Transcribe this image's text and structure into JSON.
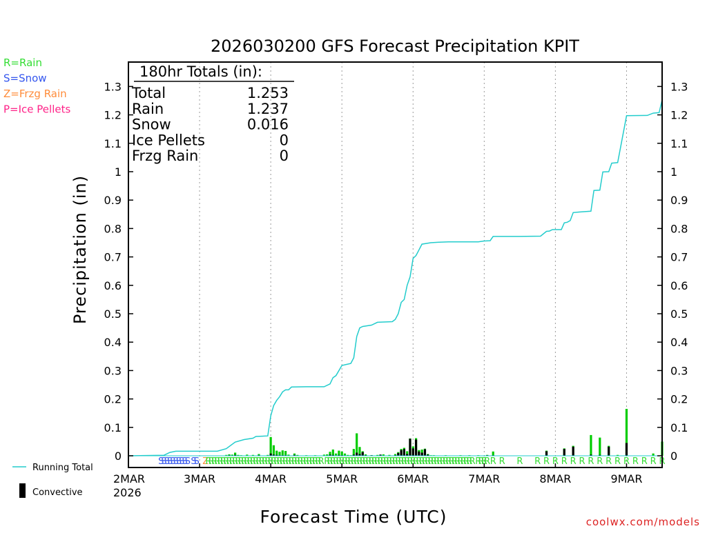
{
  "chart_data": {
    "type": "bar+line",
    "title": "2026030200 GFS Forecast Precipitation KPIT",
    "xlabel": "Forecast Time (UTC)",
    "ylabel": "Precipitation (in)",
    "credit": "coolwx.com/models",
    "forecast_hours": 180,
    "ylim": [
      0,
      1.35
    ],
    "yticks": [
      0,
      0.1,
      0.2,
      0.3,
      0.4,
      0.5,
      0.6,
      0.7,
      0.8,
      0.9,
      1,
      1.1,
      1.2,
      1.3
    ],
    "ytick_labels": [
      "0",
      "0.1",
      "0.2",
      "0.3",
      "0.4",
      "0.5",
      "0.6",
      "0.7",
      "0.8",
      "0.9",
      "1",
      "1.1",
      "1.2",
      "1.3"
    ],
    "xticks": [
      {
        "hour": 0,
        "label": "2MAR",
        "sublabel": "2026"
      },
      {
        "hour": 24,
        "label": "3MAR"
      },
      {
        "hour": 48,
        "label": "4MAR"
      },
      {
        "hour": 72,
        "label": "5MAR"
      },
      {
        "hour": 96,
        "label": "6MAR"
      },
      {
        "hour": 120,
        "label": "7MAR"
      },
      {
        "hour": 144,
        "label": "8MAR"
      },
      {
        "hour": 168,
        "label": "9MAR"
      }
    ],
    "ptype_legend": [
      {
        "label": "R=Rain",
        "color": "#33dd33"
      },
      {
        "label": "S=Snow",
        "color": "#3355ee"
      },
      {
        "label": "Z=Frzg Rain",
        "color": "#ff8c3a"
      },
      {
        "label": "P=Ice Pellets",
        "color": "#ff2288"
      }
    ],
    "series_legend": {
      "running_total": "Running Total",
      "convective": "Convective"
    },
    "totals": {
      "header": "180hr Totals (in):",
      "rows": [
        {
          "label": "Total",
          "value": "1.253"
        },
        {
          "label": "Rain",
          "value": "1.237"
        },
        {
          "label": "Snow",
          "value": "0.016"
        },
        {
          "label": "Ice Pellets",
          "value": "0"
        },
        {
          "label": "Frzg Rain",
          "value": "0"
        }
      ]
    },
    "colors": {
      "rain_bar": "#00cc00",
      "convective_bar": "#000000",
      "running_total": "#22cccc",
      "gridline": "#999999"
    },
    "bars": [
      {
        "hour": 12,
        "total": 0.001,
        "conv": 0
      },
      {
        "hour": 19,
        "total": 0.001,
        "conv": 0
      },
      {
        "hour": 33,
        "total": 0.003,
        "conv": 0.001
      },
      {
        "hour": 34,
        "total": 0.005,
        "conv": 0.002
      },
      {
        "hour": 35,
        "total": 0.004,
        "conv": 0
      },
      {
        "hour": 36,
        "total": 0.011,
        "conv": 0.003
      },
      {
        "hour": 37,
        "total": 0.003,
        "conv": 0
      },
      {
        "hour": 38,
        "total": 0.002,
        "conv": 0
      },
      {
        "hour": 39,
        "total": 0.001,
        "conv": 0
      },
      {
        "hour": 40,
        "total": 0.004,
        "conv": 0.001
      },
      {
        "hour": 42,
        "total": 0.003,
        "conv": 0
      },
      {
        "hour": 44,
        "total": 0.006,
        "conv": 0.002
      },
      {
        "hour": 47,
        "total": 0.003,
        "conv": 0
      },
      {
        "hour": 48,
        "total": 0.066,
        "conv": 0.008
      },
      {
        "hour": 49,
        "total": 0.037,
        "conv": 0.004
      },
      {
        "hour": 50,
        "total": 0.018,
        "conv": 0.003
      },
      {
        "hour": 51,
        "total": 0.014,
        "conv": 0.002
      },
      {
        "hour": 52,
        "total": 0.019,
        "conv": 0.002
      },
      {
        "hour": 53,
        "total": 0.017,
        "conv": 0.002
      },
      {
        "hour": 54,
        "total": 0.004,
        "conv": 0
      },
      {
        "hour": 56,
        "total": 0.008,
        "conv": 0.003
      },
      {
        "hour": 57,
        "total": 0.003,
        "conv": 0
      },
      {
        "hour": 60,
        "total": 0.002,
        "conv": 0
      },
      {
        "hour": 63,
        "total": 0.002,
        "conv": 0
      },
      {
        "hour": 66,
        "total": 0.004,
        "conv": 0
      },
      {
        "hour": 67,
        "total": 0.005,
        "conv": 0
      },
      {
        "hour": 68,
        "total": 0.014,
        "conv": 0.004
      },
      {
        "hour": 69,
        "total": 0.022,
        "conv": 0.003
      },
      {
        "hour": 70,
        "total": 0.008,
        "conv": 0.001
      },
      {
        "hour": 71,
        "total": 0.018,
        "conv": 0.003
      },
      {
        "hour": 72,
        "total": 0.015,
        "conv": 0.002
      },
      {
        "hour": 73,
        "total": 0.008,
        "conv": 0.001
      },
      {
        "hour": 74,
        "total": 0.003,
        "conv": 0
      },
      {
        "hour": 75,
        "total": 0.002,
        "conv": 0
      },
      {
        "hour": 76,
        "total": 0.024,
        "conv": 0.004
      },
      {
        "hour": 77,
        "total": 0.079,
        "conv": 0.011
      },
      {
        "hour": 78,
        "total": 0.031,
        "conv": 0.006
      },
      {
        "hour": 79,
        "total": 0.016,
        "conv": 0.013
      },
      {
        "hour": 80,
        "total": 0.005,
        "conv": 0.002
      },
      {
        "hour": 82,
        "total": 0.002,
        "conv": 0.002
      },
      {
        "hour": 84,
        "total": 0.003,
        "conv": 0.001
      },
      {
        "hour": 85,
        "total": 0.004,
        "conv": 0.004
      },
      {
        "hour": 86,
        "total": 0.005,
        "conv": 0.001
      },
      {
        "hour": 88,
        "total": 0.003,
        "conv": 0.001
      },
      {
        "hour": 90,
        "total": 0.006,
        "conv": 0.002
      },
      {
        "hour": 91,
        "total": 0.013,
        "conv": 0.01
      },
      {
        "hour": 92,
        "total": 0.024,
        "conv": 0.02
      },
      {
        "hour": 93,
        "total": 0.028,
        "conv": 0.024
      },
      {
        "hour": 94,
        "total": 0.016,
        "conv": 0.006
      },
      {
        "hour": 95,
        "total": 0.061,
        "conv": 0.06
      },
      {
        "hour": 96,
        "total": 0.033,
        "conv": 0.026
      },
      {
        "hour": 97,
        "total": 0.062,
        "conv": 0.057
      },
      {
        "hour": 98,
        "total": 0.02,
        "conv": 0.015
      },
      {
        "hour": 99,
        "total": 0.022,
        "conv": 0.011
      },
      {
        "hour": 100,
        "total": 0.025,
        "conv": 0.023
      },
      {
        "hour": 101,
        "total": 0.006,
        "conv": 0.004
      },
      {
        "hour": 102,
        "total": 0.002,
        "conv": 0
      },
      {
        "hour": 103,
        "total": 0.002,
        "conv": 0
      },
      {
        "hour": 107,
        "total": 0.002,
        "conv": 0
      },
      {
        "hour": 112,
        "total": 0.002,
        "conv": 0
      },
      {
        "hour": 115,
        "total": 0.002,
        "conv": 0
      },
      {
        "hour": 118,
        "total": 0.002,
        "conv": 0
      },
      {
        "hour": 121,
        "total": 0.003,
        "conv": 0.002
      },
      {
        "hour": 123,
        "total": 0.015,
        "conv": 0.002
      },
      {
        "hour": 141,
        "total": 0.018,
        "conv": 0.016
      },
      {
        "hour": 147,
        "total": 0.026,
        "conv": 0.024
      },
      {
        "hour": 150,
        "total": 0.035,
        "conv": 0.032
      },
      {
        "hour": 156,
        "total": 0.073,
        "conv": 0.004
      },
      {
        "hour": 159,
        "total": 0.064,
        "conv": 0.003
      },
      {
        "hour": 162,
        "total": 0.035,
        "conv": 0.032
      },
      {
        "hour": 165,
        "total": 0.003,
        "conv": 0.001
      },
      {
        "hour": 168,
        "total": 0.165,
        "conv": 0.045
      },
      {
        "hour": 177,
        "total": 0.008,
        "conv": 0
      },
      {
        "hour": 180,
        "total": 0.05,
        "conv": 0
      }
    ],
    "running_total": [
      [
        0,
        0
      ],
      [
        12,
        0.002
      ],
      [
        14,
        0.012
      ],
      [
        16,
        0.016
      ],
      [
        30,
        0.016
      ],
      [
        33,
        0.025
      ],
      [
        36,
        0.048
      ],
      [
        39,
        0.057
      ],
      [
        42,
        0.062
      ],
      [
        43,
        0.068
      ],
      [
        47,
        0.07
      ],
      [
        48,
        0.14
      ],
      [
        49,
        0.177
      ],
      [
        50,
        0.195
      ],
      [
        51,
        0.208
      ],
      [
        52,
        0.225
      ],
      [
        53,
        0.232
      ],
      [
        54,
        0.232
      ],
      [
        55,
        0.242
      ],
      [
        60,
        0.243
      ],
      [
        66,
        0.243
      ],
      [
        68,
        0.253
      ],
      [
        69,
        0.275
      ],
      [
        70,
        0.282
      ],
      [
        72,
        0.318
      ],
      [
        75,
        0.325
      ],
      [
        76,
        0.345
      ],
      [
        77,
        0.42
      ],
      [
        78,
        0.45
      ],
      [
        79,
        0.455
      ],
      [
        82,
        0.46
      ],
      [
        84,
        0.47
      ],
      [
        89,
        0.472
      ],
      [
        90,
        0.48
      ],
      [
        91,
        0.5
      ],
      [
        92,
        0.54
      ],
      [
        93,
        0.55
      ],
      [
        94,
        0.6
      ],
      [
        95,
        0.63
      ],
      [
        96,
        0.695
      ],
      [
        97,
        0.705
      ],
      [
        98,
        0.725
      ],
      [
        99,
        0.745
      ],
      [
        102,
        0.75
      ],
      [
        105,
        0.752
      ],
      [
        108,
        0.753
      ],
      [
        116,
        0.753
      ],
      [
        118,
        0.753
      ],
      [
        120,
        0.756
      ],
      [
        122,
        0.757
      ],
      [
        123,
        0.772
      ],
      [
        132,
        0.772
      ],
      [
        139,
        0.773
      ],
      [
        141,
        0.79
      ],
      [
        142,
        0.791
      ],
      [
        143,
        0.796
      ],
      [
        146,
        0.796
      ],
      [
        147,
        0.82
      ],
      [
        148,
        0.822
      ],
      [
        149,
        0.828
      ],
      [
        150,
        0.856
      ],
      [
        152,
        0.858
      ],
      [
        156,
        0.861
      ],
      [
        157,
        0.934
      ],
      [
        159,
        0.935
      ],
      [
        160,
        0.999
      ],
      [
        162,
        1.0
      ],
      [
        163,
        1.03
      ],
      [
        165,
        1.032
      ],
      [
        168,
        1.197
      ],
      [
        175,
        1.198
      ],
      [
        177,
        1.206
      ],
      [
        179,
        1.208
      ],
      [
        180,
        1.253
      ]
    ],
    "ptype_marks": [
      {
        "hour": 11,
        "type": "S"
      },
      {
        "hour": 12,
        "type": "S"
      },
      {
        "hour": 13,
        "type": "S"
      },
      {
        "hour": 14,
        "type": "S"
      },
      {
        "hour": 15,
        "type": "S"
      },
      {
        "hour": 16,
        "type": "S"
      },
      {
        "hour": 17,
        "type": "S"
      },
      {
        "hour": 18,
        "type": "S"
      },
      {
        "hour": 19,
        "type": "S"
      },
      {
        "hour": 20,
        "type": "S"
      },
      {
        "hour": 22,
        "type": "S"
      },
      {
        "hour": 23,
        "type": "S"
      },
      {
        "hour": 26,
        "type": "Z"
      },
      {
        "hour": 27,
        "type": "R"
      },
      {
        "hour": 28,
        "type": "R"
      },
      {
        "hour": 29,
        "type": "R"
      },
      {
        "hour": 30,
        "type": "R"
      },
      {
        "hour": 31,
        "type": "R"
      },
      {
        "hour": 32,
        "type": "R"
      },
      {
        "hour": 33,
        "type": "R"
      },
      {
        "hour": 34,
        "type": "R"
      },
      {
        "hour": 35,
        "type": "R"
      },
      {
        "hour": 36,
        "type": "R"
      },
      {
        "hour": 37,
        "type": "R"
      },
      {
        "hour": 38,
        "type": "R"
      },
      {
        "hour": 39,
        "type": "R"
      },
      {
        "hour": 40,
        "type": "R"
      },
      {
        "hour": 41,
        "type": "R"
      },
      {
        "hour": 42,
        "type": "R"
      },
      {
        "hour": 43,
        "type": "R"
      },
      {
        "hour": 44,
        "type": "R"
      },
      {
        "hour": 45,
        "type": "R"
      },
      {
        "hour": 46,
        "type": "R"
      },
      {
        "hour": 47,
        "type": "R"
      },
      {
        "hour": 48,
        "type": "R"
      },
      {
        "hour": 49,
        "type": "R"
      },
      {
        "hour": 50,
        "type": "R"
      },
      {
        "hour": 51,
        "type": "R"
      },
      {
        "hour": 52,
        "type": "R"
      },
      {
        "hour": 53,
        "type": "R"
      },
      {
        "hour": 54,
        "type": "R"
      },
      {
        "hour": 55,
        "type": "R"
      },
      {
        "hour": 56,
        "type": "R"
      },
      {
        "hour": 57,
        "type": "R"
      },
      {
        "hour": 58,
        "type": "R"
      },
      {
        "hour": 59,
        "type": "R"
      },
      {
        "hour": 60,
        "type": "R"
      },
      {
        "hour": 61,
        "type": "R"
      },
      {
        "hour": 62,
        "type": "R"
      },
      {
        "hour": 63,
        "type": "R"
      },
      {
        "hour": 64,
        "type": "R"
      },
      {
        "hour": 65,
        "type": "R"
      },
      {
        "hour": 67,
        "type": "R"
      },
      {
        "hour": 68,
        "type": "R"
      },
      {
        "hour": 69,
        "type": "R"
      },
      {
        "hour": 70,
        "type": "R"
      },
      {
        "hour": 71,
        "type": "R"
      },
      {
        "hour": 72,
        "type": "R"
      },
      {
        "hour": 73,
        "type": "R"
      },
      {
        "hour": 74,
        "type": "R"
      },
      {
        "hour": 75,
        "type": "R"
      },
      {
        "hour": 76,
        "type": "R"
      },
      {
        "hour": 77,
        "type": "R"
      },
      {
        "hour": 78,
        "type": "R"
      },
      {
        "hour": 79,
        "type": "R"
      },
      {
        "hour": 80,
        "type": "R"
      },
      {
        "hour": 81,
        "type": "R"
      },
      {
        "hour": 82,
        "type": "R"
      },
      {
        "hour": 83,
        "type": "R"
      },
      {
        "hour": 84,
        "type": "R"
      },
      {
        "hour": 85,
        "type": "R"
      },
      {
        "hour": 86,
        "type": "R"
      },
      {
        "hour": 87,
        "type": "R"
      },
      {
        "hour": 88,
        "type": "R"
      },
      {
        "hour": 89,
        "type": "R"
      },
      {
        "hour": 90,
        "type": "R"
      },
      {
        "hour": 91,
        "type": "R"
      },
      {
        "hour": 92,
        "type": "R"
      },
      {
        "hour": 93,
        "type": "R"
      },
      {
        "hour": 94,
        "type": "R"
      },
      {
        "hour": 95,
        "type": "R"
      },
      {
        "hour": 96,
        "type": "R"
      },
      {
        "hour": 97,
        "type": "R"
      },
      {
        "hour": 98,
        "type": "R"
      },
      {
        "hour": 99,
        "type": "R"
      },
      {
        "hour": 100,
        "type": "R"
      },
      {
        "hour": 101,
        "type": "R"
      },
      {
        "hour": 102,
        "type": "R"
      },
      {
        "hour": 103,
        "type": "R"
      },
      {
        "hour": 104,
        "type": "R"
      },
      {
        "hour": 105,
        "type": "R"
      },
      {
        "hour": 106,
        "type": "R"
      },
      {
        "hour": 107,
        "type": "R"
      },
      {
        "hour": 108,
        "type": "R"
      },
      {
        "hour": 109,
        "type": "R"
      },
      {
        "hour": 110,
        "type": "R"
      },
      {
        "hour": 111,
        "type": "R"
      },
      {
        "hour": 112,
        "type": "R"
      },
      {
        "hour": 113,
        "type": "R"
      },
      {
        "hour": 114,
        "type": "R"
      },
      {
        "hour": 115,
        "type": "R"
      },
      {
        "hour": 116,
        "type": "R"
      },
      {
        "hour": 118,
        "type": "R"
      },
      {
        "hour": 119,
        "type": "R"
      },
      {
        "hour": 120,
        "type": "R"
      },
      {
        "hour": 121,
        "type": "R"
      },
      {
        "hour": 123,
        "type": "R"
      },
      {
        "hour": 126,
        "type": "R"
      },
      {
        "hour": 132,
        "type": "R"
      },
      {
        "hour": 138,
        "type": "R"
      },
      {
        "hour": 141,
        "type": "R"
      },
      {
        "hour": 144,
        "type": "R"
      },
      {
        "hour": 147,
        "type": "R"
      },
      {
        "hour": 150,
        "type": "R"
      },
      {
        "hour": 153,
        "type": "R"
      },
      {
        "hour": 156,
        "type": "R"
      },
      {
        "hour": 159,
        "type": "R"
      },
      {
        "hour": 162,
        "type": "R"
      },
      {
        "hour": 165,
        "type": "R"
      },
      {
        "hour": 168,
        "type": "R"
      },
      {
        "hour": 171,
        "type": "R"
      },
      {
        "hour": 174,
        "type": "R"
      },
      {
        "hour": 177,
        "type": "R"
      },
      {
        "hour": 180,
        "type": "R"
      }
    ]
  }
}
